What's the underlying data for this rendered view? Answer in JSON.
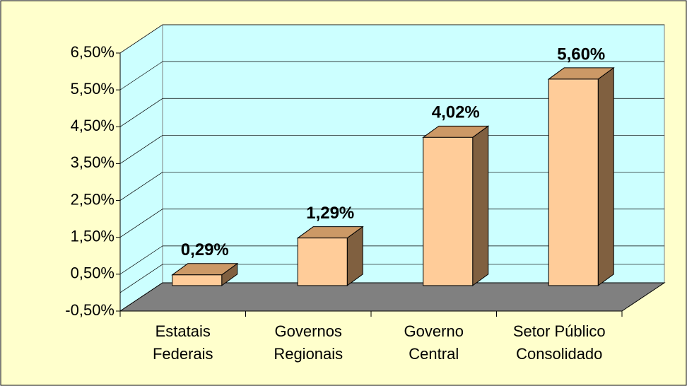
{
  "chart_data": {
    "type": "bar3d",
    "categories": [
      [
        "Estatais",
        "Federais"
      ],
      [
        "Governos",
        "Regionais"
      ],
      [
        "Governo",
        "Central"
      ],
      [
        "Setor Público",
        "Consolidado"
      ]
    ],
    "values": [
      0.29,
      1.29,
      4.02,
      5.6
    ],
    "value_labels": [
      "0,29%",
      "1,29%",
      "4,02%",
      "5,60%"
    ],
    "color": "#FFCC99",
    "ylim": [
      -0.5,
      6.5
    ],
    "yticks": [
      {
        "value": -0.5,
        "label": "-0,50%"
      },
      {
        "value": 0.5,
        "label": "0,50%"
      },
      {
        "value": 1.5,
        "label": "1,50%"
      },
      {
        "value": 2.5,
        "label": "2,50%"
      },
      {
        "value": 3.5,
        "label": "3,50%"
      },
      {
        "value": 4.5,
        "label": "4,50%"
      },
      {
        "value": 5.5,
        "label": "5,50%"
      },
      {
        "value": 6.5,
        "label": "6,50%"
      }
    ],
    "grid": true
  }
}
